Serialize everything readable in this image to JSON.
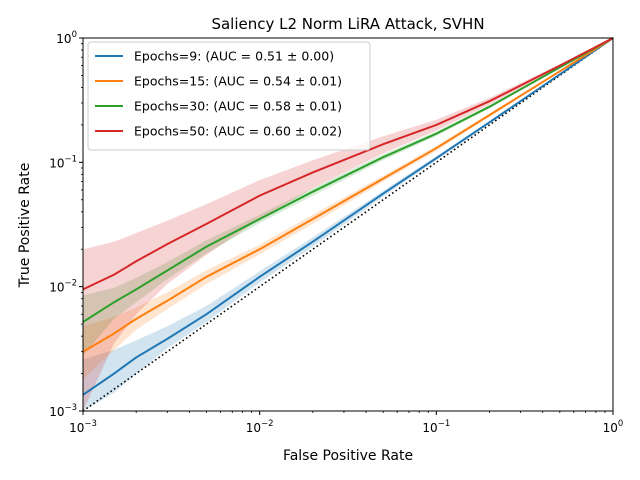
{
  "chart_data": {
    "type": "line",
    "title": "Saliency L2 Norm LiRA Attack, SVHN",
    "xlabel": "False Positive Rate",
    "ylabel": "True Positive Rate",
    "xscale": "log",
    "yscale": "log",
    "xlim": [
      0.001,
      1
    ],
    "ylim": [
      0.001,
      1
    ],
    "x_ticks": [
      {
        "value": 0.001,
        "base": "10",
        "exp": "−3"
      },
      {
        "value": 0.01,
        "base": "10",
        "exp": "−2"
      },
      {
        "value": 0.1,
        "base": "10",
        "exp": "−1"
      },
      {
        "value": 1,
        "base": "10",
        "exp": "0"
      }
    ],
    "y_ticks": [
      {
        "value": 0.001,
        "base": "10",
        "exp": "−3"
      },
      {
        "value": 0.01,
        "base": "10",
        "exp": "−2"
      },
      {
        "value": 0.1,
        "base": "10",
        "exp": "−1"
      },
      {
        "value": 1,
        "base": "10",
        "exp": "0"
      }
    ],
    "grid": false,
    "legend_position": "top-left",
    "baseline": {
      "style": "dotted",
      "color": "#000000",
      "x": [
        0.001,
        1
      ],
      "y": [
        0.001,
        1
      ]
    },
    "series": [
      {
        "name": "Epochs=9: (AUC = 0.51 ± 0.00)",
        "color": "#1f77b4",
        "x": [
          0.001,
          0.0015,
          0.002,
          0.003,
          0.005,
          0.01,
          0.02,
          0.05,
          0.1,
          0.2,
          0.5,
          1
        ],
        "y": [
          0.00135,
          0.002,
          0.0027,
          0.0038,
          0.006,
          0.012,
          0.023,
          0.056,
          0.108,
          0.21,
          0.51,
          1
        ],
        "y_lower": [
          0.0007,
          0.0014,
          0.002,
          0.0032,
          0.0052,
          0.0108,
          0.021,
          0.053,
          0.104,
          0.205,
          0.505,
          1
        ],
        "y_upper": [
          0.0026,
          0.0031,
          0.0037,
          0.0048,
          0.007,
          0.0133,
          0.025,
          0.059,
          0.112,
          0.215,
          0.515,
          1
        ]
      },
      {
        "name": "Epochs=15: (AUC = 0.54 ± 0.01)",
        "color": "#ff7f0e",
        "x": [
          0.001,
          0.0015,
          0.002,
          0.003,
          0.005,
          0.01,
          0.02,
          0.05,
          0.1,
          0.2,
          0.5,
          1
        ],
        "y": [
          0.003,
          0.0042,
          0.0055,
          0.0077,
          0.012,
          0.02,
          0.035,
          0.074,
          0.13,
          0.24,
          0.54,
          1
        ],
        "y_lower": [
          0.0018,
          0.0031,
          0.0045,
          0.0066,
          0.0105,
          0.0182,
          0.032,
          0.07,
          0.124,
          0.232,
          0.533,
          1
        ],
        "y_upper": [
          0.0048,
          0.0057,
          0.0068,
          0.009,
          0.0136,
          0.0218,
          0.038,
          0.078,
          0.136,
          0.248,
          0.547,
          1
        ]
      },
      {
        "name": "Epochs=30: (AUC = 0.58 ± 0.01)",
        "color": "#2ca02c",
        "x": [
          0.001,
          0.0015,
          0.002,
          0.003,
          0.005,
          0.01,
          0.02,
          0.05,
          0.1,
          0.2,
          0.5,
          1
        ],
        "y": [
          0.0052,
          0.0075,
          0.0095,
          0.0135,
          0.021,
          0.035,
          0.058,
          0.11,
          0.17,
          0.28,
          0.58,
          1
        ],
        "y_lower": [
          0.0028,
          0.0055,
          0.0075,
          0.0115,
          0.0185,
          0.0325,
          0.054,
          0.104,
          0.163,
          0.272,
          0.573,
          1
        ],
        "y_upper": [
          0.0085,
          0.0098,
          0.0118,
          0.0158,
          0.0236,
          0.038,
          0.062,
          0.116,
          0.177,
          0.288,
          0.587,
          1
        ]
      },
      {
        "name": "Epochs=50: (AUC = 0.60 ± 0.02)",
        "color": "#d62728",
        "x": [
          0.001,
          0.0015,
          0.002,
          0.003,
          0.005,
          0.01,
          0.02,
          0.05,
          0.1,
          0.2,
          0.5,
          1
        ],
        "y": [
          0.0095,
          0.0125,
          0.016,
          0.022,
          0.032,
          0.054,
          0.083,
          0.14,
          0.2,
          0.31,
          0.6,
          1
        ],
        "y_lower": [
          0.0009,
          0.0035,
          0.006,
          0.0105,
          0.018,
          0.035,
          0.062,
          0.118,
          0.18,
          0.29,
          0.585,
          1
        ],
        "y_upper": [
          0.02,
          0.023,
          0.027,
          0.034,
          0.046,
          0.072,
          0.104,
          0.162,
          0.22,
          0.33,
          0.615,
          1
        ]
      }
    ]
  }
}
